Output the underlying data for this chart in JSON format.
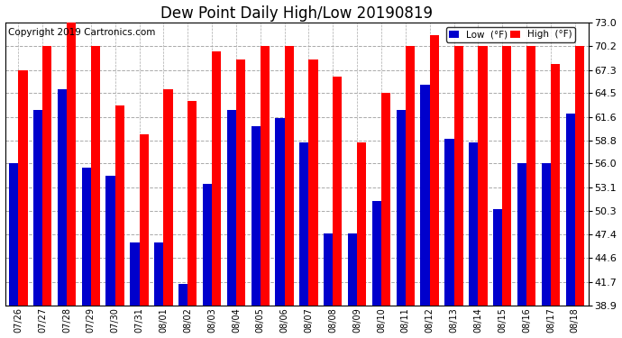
{
  "title": "Dew Point Daily High/Low 20190819",
  "copyright": "Copyright 2019 Cartronics.com",
  "dates": [
    "07/26",
    "07/27",
    "07/28",
    "07/29",
    "07/30",
    "07/31",
    "08/01",
    "08/02",
    "08/03",
    "08/04",
    "08/05",
    "08/06",
    "08/07",
    "08/08",
    "08/09",
    "08/10",
    "08/11",
    "08/12",
    "08/13",
    "08/14",
    "08/15",
    "08/16",
    "08/17",
    "08/18"
  ],
  "high": [
    67.3,
    70.2,
    73.0,
    70.2,
    63.0,
    59.5,
    65.0,
    63.5,
    69.5,
    68.5,
    70.2,
    70.2,
    68.5,
    66.5,
    58.5,
    64.5,
    70.2,
    71.5,
    70.2,
    70.2,
    70.2,
    70.2,
    68.0,
    70.2
  ],
  "low": [
    56.0,
    62.5,
    65.0,
    55.5,
    54.5,
    46.5,
    46.5,
    41.5,
    53.5,
    62.5,
    60.5,
    61.5,
    58.5,
    47.5,
    47.5,
    51.5,
    62.5,
    65.5,
    59.0,
    58.5,
    50.5,
    56.0,
    56.0,
    62.0
  ],
  "ylim": [
    38.9,
    73.0
  ],
  "yticks": [
    38.9,
    41.7,
    44.6,
    47.4,
    50.3,
    53.1,
    56.0,
    58.8,
    61.6,
    64.5,
    67.3,
    70.2,
    73.0
  ],
  "bar_width": 0.38,
  "high_color": "#ff0000",
  "low_color": "#0000cc",
  "bg_color": "#ffffff",
  "grid_color": "#aaaaaa",
  "title_fontsize": 12,
  "copyright_fontsize": 7.5,
  "legend_low_label": "Low  (°F)",
  "legend_high_label": "High  (°F)",
  "ymin": 38.9
}
